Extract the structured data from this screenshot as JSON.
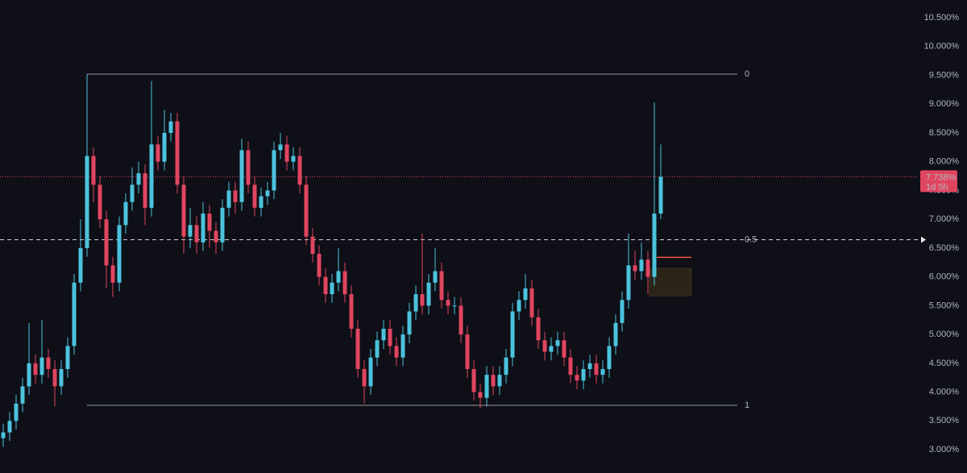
{
  "chart_data": {
    "type": "candlestick",
    "up_color": "#4cc3dc",
    "down_color": "#e0455f",
    "ylim": [
      2.595,
      10.808
    ],
    "yticks": [
      {
        "value": 3.0,
        "label": "3.000%"
      },
      {
        "value": 3.5,
        "label": "3.500%"
      },
      {
        "value": 4.0,
        "label": "4.000%"
      },
      {
        "value": 4.5,
        "label": "4.500%"
      },
      {
        "value": 5.0,
        "label": "5.000%"
      },
      {
        "value": 5.5,
        "label": "5.500%"
      },
      {
        "value": 6.0,
        "label": "6.000%"
      },
      {
        "value": 6.5,
        "label": "6.500%"
      },
      {
        "value": 7.0,
        "label": "7.000%"
      },
      {
        "value": 7.5,
        "label": "7.500%"
      },
      {
        "value": 8.0,
        "label": "8.000%"
      },
      {
        "value": 8.5,
        "label": "8.500%"
      },
      {
        "value": 9.0,
        "label": "9.000%"
      },
      {
        "value": 9.5,
        "label": "9.500%"
      },
      {
        "value": 10.0,
        "label": "10.000%"
      },
      {
        "value": 10.5,
        "label": "10.500%"
      }
    ],
    "open": [
      3.2,
      3.3,
      3.5,
      3.8,
      4.1,
      4.5,
      4.3,
      4.6,
      4.4,
      4.1,
      4.4,
      4.8,
      5.9,
      6.5,
      8.1,
      7.6,
      7.0,
      6.2,
      5.9,
      6.9,
      7.3,
      7.6,
      7.8,
      7.2,
      8.3,
      8.0,
      8.5,
      8.7,
      7.6,
      6.7,
      6.9,
      6.6,
      7.1,
      6.8,
      6.6,
      7.2,
      7.5,
      7.3,
      8.2,
      7.6,
      7.2,
      7.4,
      7.5,
      8.2,
      8.3,
      8.0,
      8.1,
      7.6,
      6.7,
      6.4,
      6.0,
      5.7,
      5.9,
      6.1,
      5.7,
      5.1,
      4.4,
      4.1,
      4.6,
      4.9,
      5.1,
      4.8,
      4.6,
      5.0,
      5.4,
      5.7,
      5.5,
      5.9,
      6.1,
      5.6,
      5.5,
      5.5,
      5.0,
      4.4,
      4.0,
      3.9,
      4.3,
      4.1,
      4.3,
      4.6,
      5.4,
      5.6,
      5.8,
      5.3,
      4.9,
      4.7,
      4.8,
      4.9,
      4.6,
      4.3,
      4.2,
      4.4,
      4.5,
      4.3,
      4.4,
      4.8,
      5.2,
      5.6,
      6.2,
      6.1,
      6.3,
      6.0,
      7.1
    ],
    "high": [
      3.45,
      3.65,
      3.95,
      4.25,
      5.2,
      4.65,
      5.25,
      4.75,
      4.55,
      4.55,
      4.95,
      6.05,
      7.0,
      9.52,
      8.25,
      7.75,
      7.15,
      6.35,
      7.05,
      7.45,
      7.9,
      8.0,
      7.95,
      9.4,
      8.45,
      8.9,
      8.85,
      8.85,
      7.75,
      7.2,
      7.05,
      7.3,
      7.25,
      6.95,
      7.35,
      7.65,
      7.65,
      8.4,
      8.35,
      7.75,
      7.55,
      7.65,
      8.35,
      8.5,
      8.45,
      8.25,
      8.25,
      7.75,
      6.85,
      6.55,
      6.15,
      6.05,
      6.5,
      6.25,
      5.85,
      5.25,
      4.55,
      4.75,
      5.05,
      5.25,
      5.25,
      4.95,
      5.15,
      5.55,
      5.85,
      6.75,
      6.05,
      6.5,
      6.25,
      5.75,
      5.65,
      5.65,
      5.15,
      4.55,
      4.15,
      4.45,
      4.45,
      4.45,
      4.75,
      5.55,
      5.75,
      6.05,
      5.95,
      5.45,
      5.05,
      4.95,
      5.05,
      5.05,
      4.75,
      4.45,
      4.55,
      4.65,
      4.65,
      4.55,
      4.95,
      5.35,
      5.75,
      6.75,
      6.45,
      6.6,
      6.45,
      9.03,
      8.3
    ],
    "low": [
      3.05,
      3.15,
      3.35,
      3.65,
      3.95,
      4.15,
      4.15,
      4.25,
      3.75,
      3.95,
      4.25,
      4.65,
      5.75,
      6.35,
      7.3,
      6.85,
      5.8,
      5.65,
      5.75,
      6.75,
      7.15,
      7.45,
      6.9,
      7.05,
      7.85,
      7.85,
      8.35,
      7.45,
      6.4,
      6.5,
      6.4,
      6.45,
      6.5,
      6.4,
      6.45,
      7.05,
      7.1,
      7.15,
      7.45,
      7.05,
      7.05,
      7.25,
      7.35,
      8.05,
      7.85,
      7.85,
      7.45,
      6.55,
      6.25,
      5.85,
      5.55,
      5.55,
      5.75,
      5.55,
      4.95,
      4.25,
      3.8,
      3.95,
      4.45,
      4.75,
      4.65,
      4.45,
      4.45,
      4.85,
      5.25,
      5.35,
      5.35,
      5.75,
      5.45,
      5.35,
      5.35,
      4.85,
      4.25,
      3.85,
      3.72,
      3.75,
      3.95,
      3.95,
      4.15,
      4.45,
      5.25,
      5.45,
      5.15,
      4.75,
      4.55,
      4.55,
      4.65,
      4.45,
      4.15,
      4.05,
      4.05,
      4.25,
      4.15,
      4.15,
      4.25,
      4.65,
      5.05,
      5.45,
      5.95,
      5.95,
      5.7,
      5.85,
      7.0
    ],
    "close": [
      3.3,
      3.5,
      3.8,
      4.1,
      4.5,
      4.3,
      4.6,
      4.4,
      4.1,
      4.4,
      4.8,
      5.9,
      6.5,
      8.1,
      7.6,
      7.0,
      6.2,
      5.9,
      6.9,
      7.3,
      7.6,
      7.8,
      7.2,
      8.3,
      8.0,
      8.5,
      8.7,
      7.6,
      6.7,
      6.9,
      6.6,
      7.1,
      6.8,
      6.6,
      7.2,
      7.5,
      7.3,
      8.2,
      7.6,
      7.2,
      7.4,
      7.5,
      8.2,
      8.3,
      8.0,
      8.1,
      7.6,
      6.7,
      6.4,
      6.0,
      5.7,
      5.9,
      6.1,
      5.7,
      5.1,
      4.4,
      4.1,
      4.6,
      4.9,
      5.1,
      4.8,
      4.6,
      5.0,
      5.4,
      5.7,
      5.5,
      5.9,
      6.1,
      5.6,
      5.5,
      5.5,
      5.0,
      4.4,
      4.0,
      3.9,
      4.3,
      4.1,
      4.3,
      4.6,
      5.4,
      5.6,
      5.8,
      5.3,
      4.9,
      4.7,
      4.8,
      4.9,
      4.6,
      4.3,
      4.2,
      4.4,
      4.5,
      4.3,
      4.4,
      4.8,
      5.2,
      5.6,
      6.2,
      6.1,
      6.3,
      6.0,
      7.1,
      7.738
    ],
    "levels": [
      {
        "label": "0",
        "value": 9.52
      },
      {
        "label": "0.5",
        "value": 6.645
      },
      {
        "label": "1",
        "value": 3.77
      }
    ],
    "last_price": {
      "value": 7.738,
      "label": "7.738%"
    },
    "countdown": "1d 5h",
    "zone": [
      5.67,
      6.15
    ],
    "target": 6.34
  }
}
